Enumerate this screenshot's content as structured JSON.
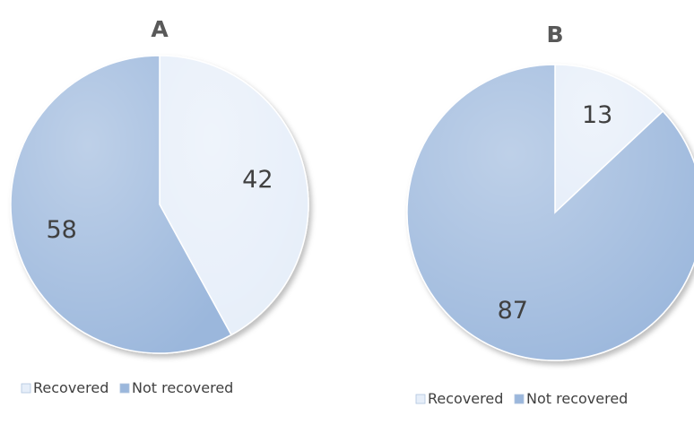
{
  "chart_data": [
    {
      "type": "pie",
      "title": "A",
      "categories": [
        "Recovered",
        "Not recovered"
      ],
      "values": [
        42,
        58
      ],
      "colors": [
        "#e6eef9",
        "#9bb7dc"
      ],
      "legend": [
        "Recovered",
        "Not recovered"
      ],
      "legend_position": "bottom"
    },
    {
      "type": "pie",
      "title": "B",
      "categories": [
        "Recovered",
        "Not recovered"
      ],
      "values": [
        13,
        87
      ],
      "colors": [
        "#e6eef9",
        "#9bb7dc"
      ],
      "legend": [
        "Recovered",
        "Not recovered"
      ],
      "legend_position": "bottom"
    }
  ]
}
